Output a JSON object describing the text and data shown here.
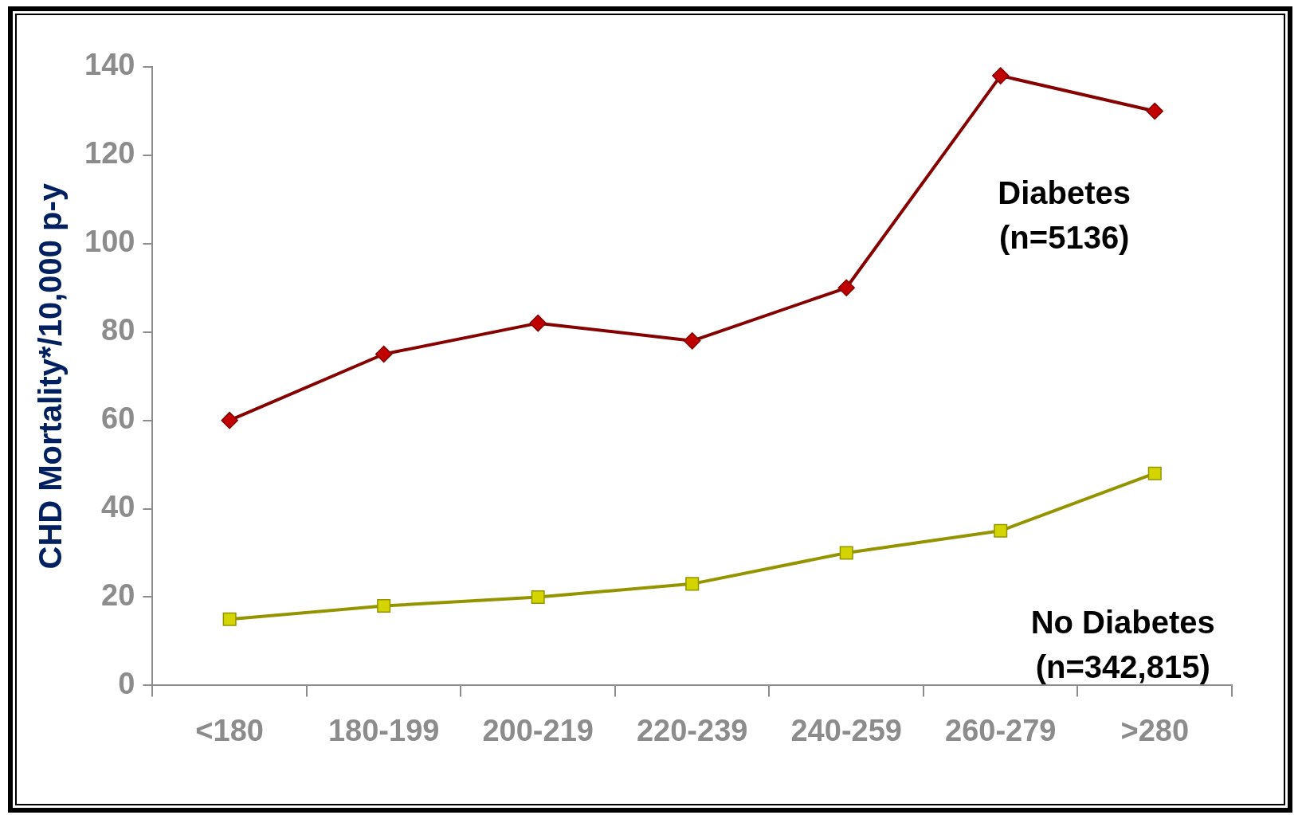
{
  "chart_data": {
    "type": "line",
    "ylabel": "CHD Mortality*/10,000 p-y",
    "categories": [
      "<180",
      "180-199",
      "200-219",
      "220-239",
      "240-259",
      "260-279",
      ">280"
    ],
    "series": [
      {
        "name": "Diabetes (n=5136)",
        "color": "#c00000",
        "marker": "diamond",
        "values": [
          60,
          75,
          82,
          78,
          90,
          138,
          130
        ]
      },
      {
        "name": "No Diabetes (n=342,815)",
        "color": "#d4d400",
        "marker": "square",
        "values": [
          15,
          18,
          20,
          23,
          30,
          35,
          48
        ]
      }
    ],
    "ylim": [
      0,
      140
    ],
    "yticks": [
      0,
      20,
      40,
      60,
      80,
      100,
      120,
      140
    ],
    "grid": false,
    "legend": false
  }
}
